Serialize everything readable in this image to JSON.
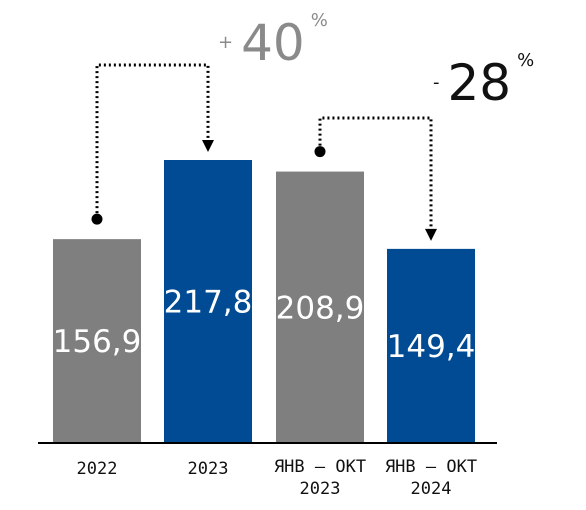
{
  "chart_data": {
    "type": "bar",
    "categories": [
      [
        "2022"
      ],
      [
        "2023"
      ],
      [
        "ЯНВ – ОКТ",
        "2023"
      ],
      [
        "ЯНВ – ОКТ",
        "2024"
      ]
    ],
    "values": [
      156.9,
      217.8,
      208.9,
      149.4
    ],
    "value_labels": [
      "156,9",
      "217,8",
      "208,9",
      "149,4"
    ],
    "ylim": [
      0,
      235
    ],
    "colors": [
      "#7f7f7f",
      "#004b93",
      "#7f7f7f",
      "#004b93"
    ],
    "grid": false,
    "legend": "none",
    "changes": [
      {
        "from": 0,
        "to": 1,
        "sign": "+",
        "value": "40",
        "unit": "%",
        "color": "#8a8a8a"
      },
      {
        "from": 2,
        "to": 3,
        "sign": "-",
        "value": "28",
        "unit": "%",
        "color": "#111111"
      }
    ]
  }
}
